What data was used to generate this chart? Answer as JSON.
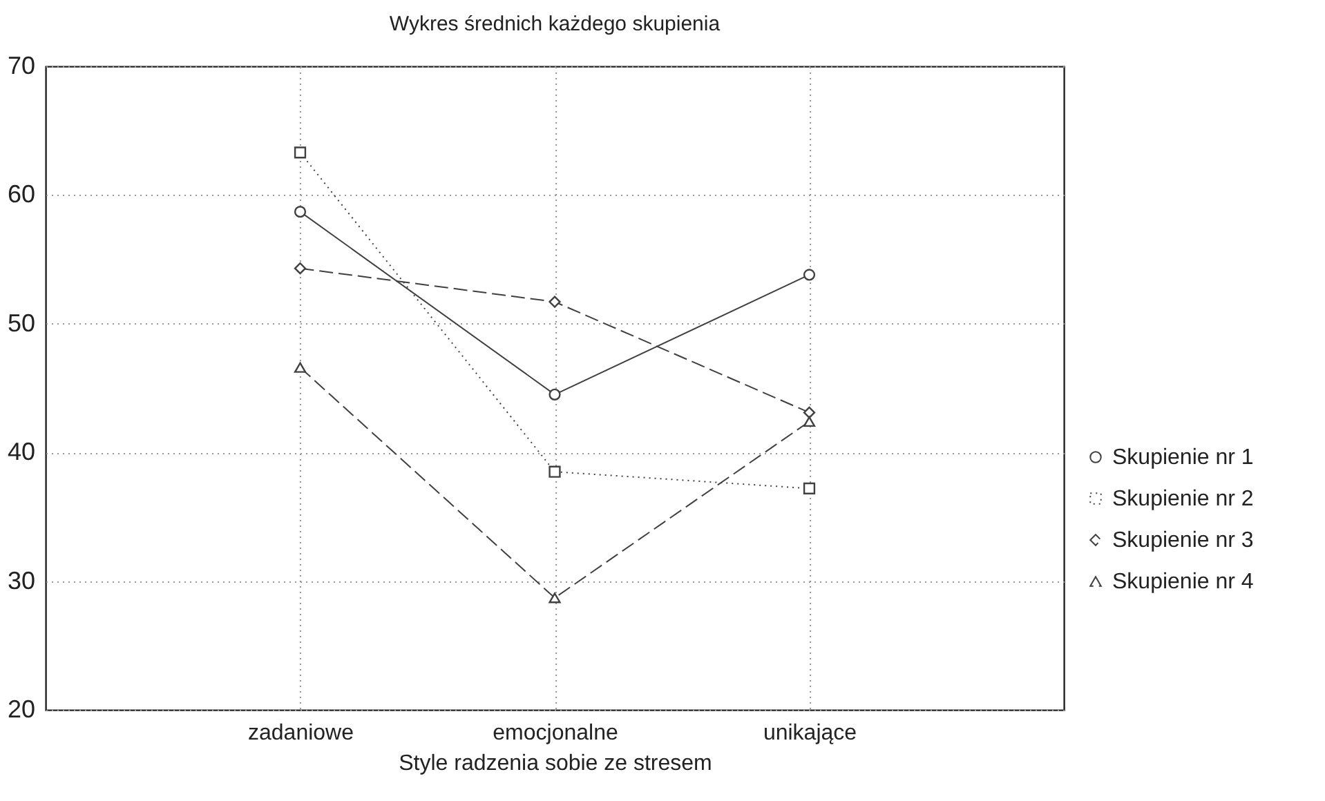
{
  "chart_data": {
    "type": "line",
    "title": "Wykres średnich każdego skupienia",
    "xlabel": "Style radzenia sobie ze stresem",
    "categories": [
      "zadaniowe",
      "emocjonalne",
      "unikające"
    ],
    "series": [
      {
        "name": "Skupienie nr  1",
        "color": "#404040",
        "marker": "circle",
        "line_style": "solid",
        "values": [
          58.7,
          44.5,
          53.8
        ]
      },
      {
        "name": "Skupienie nr  2",
        "color": "#404040",
        "marker": "square",
        "line_style": "dotted",
        "values": [
          63.3,
          38.5,
          37.2
        ]
      },
      {
        "name": "Skupienie nr  3",
        "color": "#404040",
        "marker": "diamond",
        "line_style": "dashed",
        "values": [
          54.3,
          51.7,
          43.1
        ]
      },
      {
        "name": "Skupienie nr  4",
        "color": "#404040",
        "marker": "triangle",
        "line_style": "dashed",
        "values": [
          46.6,
          28.7,
          42.4
        ]
      }
    ],
    "ylim": [
      20,
      70
    ],
    "yticks": [
      20,
      30,
      40,
      50,
      60,
      70
    ],
    "grid": true,
    "legend": "right"
  }
}
